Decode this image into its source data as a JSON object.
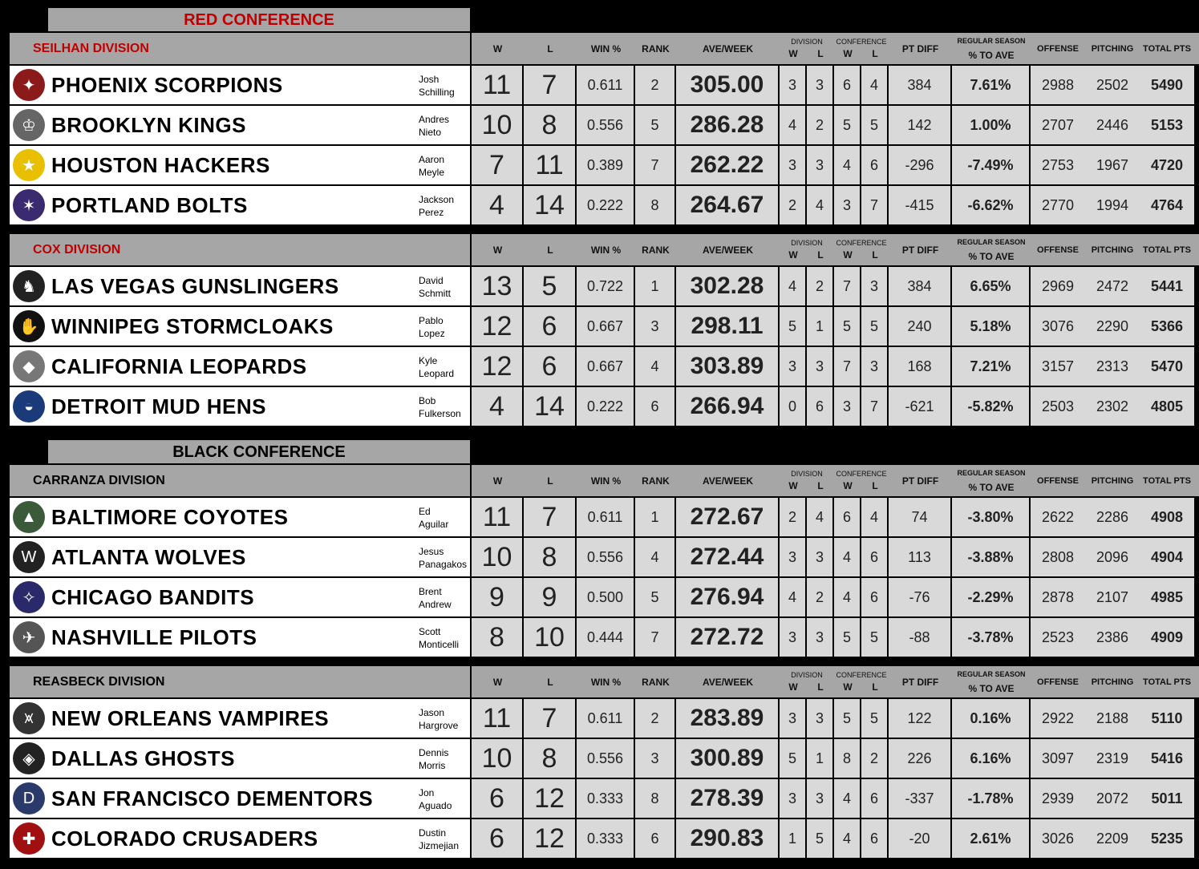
{
  "headers": {
    "w": "W",
    "l": "L",
    "win_pct": "WIN %",
    "rank": "RANK",
    "ave_week": "AVE/WEEK",
    "division": "DIVISION",
    "conference": "CONFERENCE",
    "pt_diff": "PT DIFF",
    "regular_season": "REGULAR SEASON",
    "pct_to_ave": "% TO AVE",
    "offense": "OFFENSE",
    "pitching": "PITCHING",
    "total_pts": "TOTAL PTS"
  },
  "colors": {
    "red": "#c00000",
    "header_gray": "#a6a6a6",
    "cell_gray": "#d9d9d9"
  },
  "conferences": [
    {
      "title": "RED CONFERENCE",
      "color": "#c00000",
      "divisions": [
        {
          "name": "SEILHAN DIVISION",
          "teams": [
            {
              "name": "PHOENIX SCORPIONS",
              "manager": "Josh\nSchilling",
              "w": "11",
              "l": "7",
              "win_pct": "0.611",
              "rank": "2",
              "ave": "305.00",
              "dw": "3",
              "dl": "3",
              "cw": "6",
              "cl": "4",
              "pt_diff": "384",
              "pct": "7.61%",
              "off": "2988",
              "pit": "2502",
              "tot": "5490",
              "logo": "scorpion-logo"
            },
            {
              "name": "BROOKLYN KINGS",
              "manager": "Andres\nNieto",
              "w": "10",
              "l": "8",
              "win_pct": "0.556",
              "rank": "5",
              "ave": "286.28",
              "dw": "4",
              "dl": "2",
              "cw": "5",
              "cl": "5",
              "pt_diff": "142",
              "pct": "1.00%",
              "off": "2707",
              "pit": "2446",
              "tot": "5153",
              "logo": "crown-logo"
            },
            {
              "name": "HOUSTON HACKERS",
              "manager": "Aaron\nMeyle",
              "w": "7",
              "l": "11",
              "win_pct": "0.389",
              "rank": "7",
              "ave": "262.22",
              "dw": "3",
              "dl": "3",
              "cw": "4",
              "cl": "6",
              "pt_diff": "-296",
              "pct": "-7.49%",
              "off": "2753",
              "pit": "1967",
              "tot": "4720",
              "logo": "texas-logo"
            },
            {
              "name": "PORTLAND BOLTS",
              "manager": "Jackson\nPerez",
              "w": "4",
              "l": "14",
              "win_pct": "0.222",
              "rank": "8",
              "ave": "264.67",
              "dw": "2",
              "dl": "4",
              "cw": "3",
              "cl": "7",
              "pt_diff": "-415",
              "pct": "-6.62%",
              "off": "2770",
              "pit": "1994",
              "tot": "4764",
              "logo": "star-bolt-logo"
            }
          ]
        },
        {
          "name": "COX DIVISION",
          "teams": [
            {
              "name": "LAS VEGAS GUNSLINGERS",
              "manager": "David\nSchmitt",
              "w": "13",
              "l": "5",
              "win_pct": "0.722",
              "rank": "1",
              "ave": "302.28",
              "dw": "4",
              "dl": "2",
              "cw": "7",
              "cl": "3",
              "pt_diff": "384",
              "pct": "6.65%",
              "off": "2969",
              "pit": "2472",
              "tot": "5441",
              "logo": "gunslinger-logo"
            },
            {
              "name": "WINNIPEG STORMCLOAKS",
              "manager": "Pablo\nLopez",
              "w": "12",
              "l": "6",
              "win_pct": "0.667",
              "rank": "3",
              "ave": "298.11",
              "dw": "5",
              "dl": "1",
              "cw": "5",
              "cl": "5",
              "pt_diff": "240",
              "pct": "5.18%",
              "off": "3076",
              "pit": "2290",
              "tot": "5366",
              "logo": "bear-paw-logo"
            },
            {
              "name": "CALIFORNIA LEOPARDS",
              "manager": "Kyle\nLeopard",
              "w": "12",
              "l": "6",
              "win_pct": "0.667",
              "rank": "4",
              "ave": "303.89",
              "dw": "3",
              "dl": "3",
              "cw": "7",
              "cl": "3",
              "pt_diff": "168",
              "pct": "7.21%",
              "off": "3157",
              "pit": "2313",
              "tot": "5470",
              "logo": "leopard-logo"
            },
            {
              "name": "DETROIT MUD HENS",
              "manager": "Bob\nFulkerson",
              "w": "4",
              "l": "14",
              "win_pct": "0.222",
              "rank": "6",
              "ave": "266.94",
              "dw": "0",
              "dl": "6",
              "cw": "3",
              "cl": "7",
              "pt_diff": "-621",
              "pct": "-5.82%",
              "off": "2503",
              "pit": "2302",
              "tot": "4805",
              "logo": "mud-hen-logo"
            }
          ]
        }
      ]
    },
    {
      "title": "BLACK CONFERENCE",
      "color": "#000000",
      "divisions": [
        {
          "name": "CARRANZA DIVISION",
          "teams": [
            {
              "name": "BALTIMORE COYOTES",
              "manager": "Ed\nAguilar",
              "w": "11",
              "l": "7",
              "win_pct": "0.611",
              "rank": "1",
              "ave": "272.67",
              "dw": "2",
              "dl": "4",
              "cw": "6",
              "cl": "4",
              "pt_diff": "74",
              "pct": "-3.80%",
              "off": "2622",
              "pit": "2286",
              "tot": "4908",
              "logo": "coyote-logo"
            },
            {
              "name": "ATLANTA WOLVES",
              "manager": "Jesus\nPanagakos",
              "w": "10",
              "l": "8",
              "win_pct": "0.556",
              "rank": "4",
              "ave": "272.44",
              "dw": "3",
              "dl": "3",
              "cw": "4",
              "cl": "6",
              "pt_diff": "113",
              "pct": "-3.88%",
              "off": "2808",
              "pit": "2096",
              "tot": "4904",
              "logo": "wolves-logo"
            },
            {
              "name": "CHICAGO BANDITS",
              "manager": "Brent\nAndrew",
              "w": "9",
              "l": "9",
              "win_pct": "0.500",
              "rank": "5",
              "ave": "276.94",
              "dw": "4",
              "dl": "2",
              "cw": "4",
              "cl": "6",
              "pt_diff": "-76",
              "pct": "-2.29%",
              "off": "2878",
              "pit": "2107",
              "tot": "4985",
              "logo": "bandit-logo"
            },
            {
              "name": "NASHVILLE PILOTS",
              "manager": "Scott\nMonticelli",
              "w": "8",
              "l": "10",
              "win_pct": "0.444",
              "rank": "7",
              "ave": "272.72",
              "dw": "3",
              "dl": "3",
              "cw": "5",
              "cl": "5",
              "pt_diff": "-88",
              "pct": "-3.78%",
              "off": "2523",
              "pit": "2386",
              "tot": "4909",
              "logo": "pilot-logo"
            }
          ]
        },
        {
          "name": "REASBECK DIVISION",
          "teams": [
            {
              "name": "NEW ORLEANS VAMPIRES",
              "manager": "Jason\nHargrove",
              "w": "11",
              "l": "7",
              "win_pct": "0.611",
              "rank": "2",
              "ave": "283.89",
              "dw": "3",
              "dl": "3",
              "cw": "5",
              "cl": "5",
              "pt_diff": "122",
              "pct": "0.16%",
              "off": "2922",
              "pit": "2188",
              "tot": "5110",
              "logo": "bat-logo"
            },
            {
              "name": "DALLAS GHOSTS",
              "manager": "Dennis\nMorris",
              "w": "10",
              "l": "8",
              "win_pct": "0.556",
              "rank": "3",
              "ave": "300.89",
              "dw": "5",
              "dl": "1",
              "cw": "8",
              "cl": "2",
              "pt_diff": "226",
              "pct": "6.16%",
              "off": "3097",
              "pit": "2319",
              "tot": "5416",
              "logo": "ghost-diamond-logo"
            },
            {
              "name": "SAN FRANCISCO DEMENTORS",
              "manager": "Jon\nAguado",
              "w": "6",
              "l": "12",
              "win_pct": "0.333",
              "rank": "8",
              "ave": "278.39",
              "dw": "3",
              "dl": "3",
              "cw": "4",
              "cl": "6",
              "pt_diff": "-337",
              "pct": "-1.78%",
              "off": "2939",
              "pit": "2072",
              "tot": "5011",
              "logo": "dementors-wordmark-logo"
            },
            {
              "name": "COLORADO CRUSADERS",
              "manager": "Dustin\nJizmejian",
              "w": "6",
              "l": "12",
              "win_pct": "0.333",
              "rank": "6",
              "ave": "290.83",
              "dw": "1",
              "dl": "5",
              "cw": "4",
              "cl": "6",
              "pt_diff": "-20",
              "pct": "2.61%",
              "off": "3026",
              "pit": "2209",
              "tot": "5235",
              "logo": "cross-shield-logo"
            }
          ]
        }
      ]
    }
  ]
}
